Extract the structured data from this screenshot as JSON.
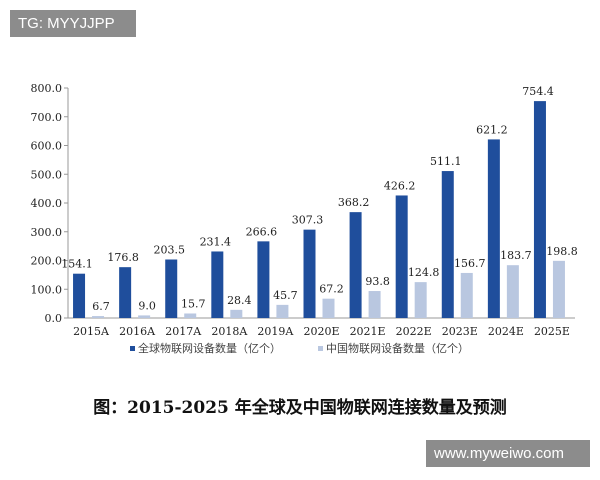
{
  "watermarks": {
    "top_left": "TG: MYYJJPP",
    "bottom_right": "www.myweiwo.com"
  },
  "colors": {
    "global": "#1f4e9c",
    "china": "#b9c7e0",
    "axis": "#999999"
  },
  "chart_data": {
    "type": "bar",
    "title": "图：2015-2025 年全球及中国物联网连接数量及预测",
    "xlabel": "",
    "ylabel": "",
    "ylim": [
      0,
      800
    ],
    "yticks": [
      "0.0",
      "100.0",
      "200.0",
      "300.0",
      "400.0",
      "500.0",
      "600.0",
      "700.0",
      "800.0"
    ],
    "grid": false,
    "legend_position": "bottom",
    "categories": [
      "2015A",
      "2016A",
      "2017A",
      "2018A",
      "2019A",
      "2020E",
      "2021E",
      "2022E",
      "2023E",
      "2024E",
      "2025E"
    ],
    "series": [
      {
        "name": "全球物联网设备数量（亿个）",
        "values": [
          154.1,
          176.8,
          203.5,
          231.4,
          266.6,
          307.3,
          368.2,
          426.2,
          511.1,
          621.2,
          754.4
        ],
        "labels": [
          "154.1",
          "176.8",
          "203.5",
          "231.4",
          "266.6",
          "307.3",
          "368.2",
          "426.2",
          "511.1",
          "621.2",
          "754.4"
        ]
      },
      {
        "name": "中国物联网设备数量（亿个）",
        "values": [
          6.7,
          9.0,
          15.7,
          28.4,
          45.7,
          67.2,
          93.8,
          124.8,
          156.7,
          183.7,
          198.8
        ],
        "labels": [
          "6.7",
          "9.0",
          "15.7",
          "28.4",
          "45.7",
          "67.2",
          "93.8",
          "124.8",
          "156.7",
          "183.7",
          "198.8"
        ]
      }
    ]
  }
}
